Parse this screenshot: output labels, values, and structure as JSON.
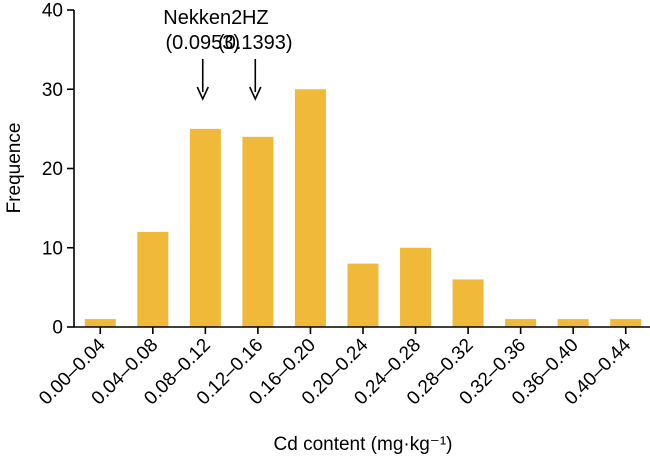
{
  "chart_data": {
    "type": "bar",
    "categories": [
      "0.00–0.04",
      "0.04–0.08",
      "0.08–0.12",
      "0.12–0.16",
      "0.16–0.20",
      "0.20–0.24",
      "0.24–0.28",
      "0.28–0.32",
      "0.32–0.36",
      "0.36–0.40",
      "0.40–0.44"
    ],
    "values": [
      1,
      12,
      25,
      24,
      30,
      8,
      10,
      6,
      1,
      1,
      1
    ],
    "title": "",
    "xlabel": "Cd content (mg·kg⁻¹)",
    "ylabel": "Frequence",
    "ylim": [
      0,
      40
    ],
    "yticks": [
      0,
      10,
      20,
      30,
      40
    ],
    "bar_color": "#F0B93A",
    "grid": false,
    "annotations": [
      {
        "label": "Nekken2",
        "value": "(0.0953)",
        "category_index": 2
      },
      {
        "label": "HZ",
        "value": "(0.1393)",
        "category_index": 3
      }
    ]
  }
}
